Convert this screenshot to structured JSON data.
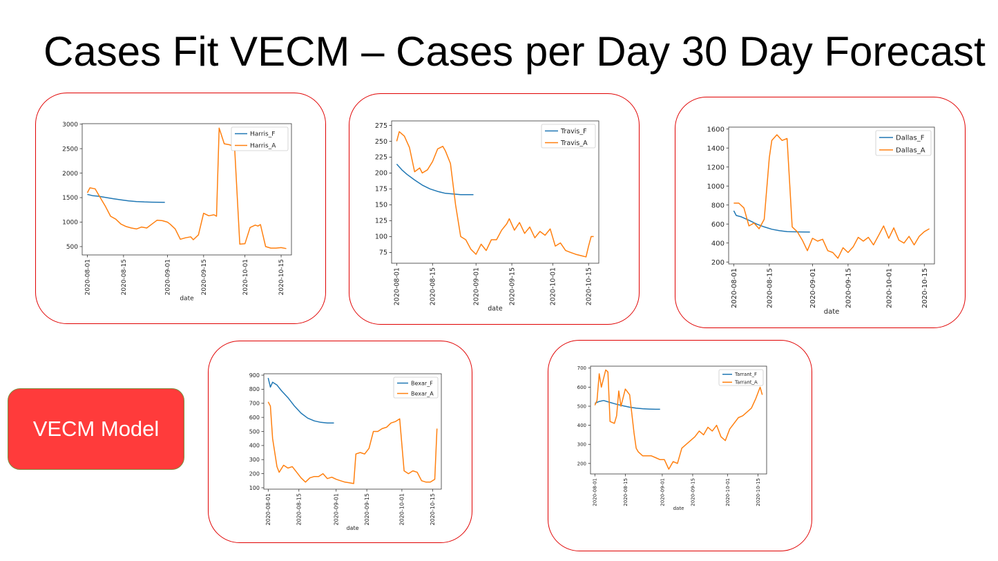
{
  "slide": {
    "title": "Cases Fit VECM – Cases per Day 30 Day Forecast",
    "model_button": "VECM Model"
  },
  "colors": {
    "forecast": "#1f77b4",
    "actual": "#ff7f0e",
    "panel_border": "#e00000",
    "button": "#ff3b3b"
  },
  "chart_data": [
    {
      "type": "line",
      "id": "harris",
      "xlabel": "date",
      "ylabel": "",
      "xlim": [
        "2020-07-30",
        "2020-10-19"
      ],
      "ylim": [
        330,
        3010
      ],
      "yticks": [
        500,
        1000,
        1500,
        2000,
        2500,
        3000
      ],
      "xticks": [
        "2020-08-01",
        "2020-08-15",
        "2020-09-01",
        "2020-09-15",
        "2020-10-01",
        "2020-10-15"
      ],
      "legend": "top-right",
      "series": [
        {
          "name": "Harris_F",
          "x": [
            "2020-08-01",
            "2020-08-03",
            "2020-08-05",
            "2020-08-08",
            "2020-08-11",
            "2020-08-14",
            "2020-08-17",
            "2020-08-20",
            "2020-08-23",
            "2020-08-26",
            "2020-08-29",
            "2020-08-31"
          ],
          "y": [
            1565,
            1540,
            1530,
            1505,
            1478,
            1455,
            1435,
            1420,
            1412,
            1408,
            1405,
            1404
          ]
        },
        {
          "name": "Harris_A",
          "x": [
            "2020-08-01",
            "2020-08-02",
            "2020-08-04",
            "2020-08-06",
            "2020-08-08",
            "2020-08-10",
            "2020-08-12",
            "2020-08-14",
            "2020-08-16",
            "2020-08-18",
            "2020-08-20",
            "2020-08-22",
            "2020-08-24",
            "2020-08-26",
            "2020-08-28",
            "2020-08-30",
            "2020-09-01",
            "2020-09-02",
            "2020-09-04",
            "2020-09-06",
            "2020-09-08",
            "2020-09-10",
            "2020-09-11",
            "2020-09-13",
            "2020-09-15",
            "2020-09-17",
            "2020-09-19",
            "2020-09-20",
            "2020-09-21",
            "2020-09-23",
            "2020-09-25",
            "2020-09-26",
            "2020-09-27",
            "2020-09-29",
            "2020-10-01",
            "2020-10-03",
            "2020-10-05",
            "2020-10-06",
            "2020-10-07",
            "2020-10-09",
            "2020-10-11",
            "2020-10-13",
            "2020-10-15",
            "2020-10-17"
          ],
          "y": [
            1600,
            1700,
            1680,
            1500,
            1320,
            1120,
            1060,
            960,
            910,
            880,
            860,
            900,
            880,
            960,
            1040,
            1030,
            1000,
            960,
            860,
            650,
            680,
            700,
            640,
            740,
            1180,
            1130,
            1150,
            1120,
            2920,
            2600,
            2580,
            2560,
            2520,
            550,
            560,
            890,
            940,
            920,
            950,
            500,
            470,
            470,
            480,
            460
          ]
        }
      ]
    },
    {
      "type": "line",
      "id": "travis",
      "xlabel": "date",
      "ylabel": "",
      "xlim": [
        "2020-07-30",
        "2020-10-19"
      ],
      "ylim": [
        58,
        282
      ],
      "yticks": [
        75,
        100,
        125,
        150,
        175,
        200,
        225,
        250,
        275
      ],
      "xticks": [
        "2020-08-01",
        "2020-08-15",
        "2020-09-01",
        "2020-09-15",
        "2020-10-01",
        "2020-10-15"
      ],
      "legend": "top-right",
      "series": [
        {
          "name": "Travis_F",
          "x": [
            "2020-08-01",
            "2020-08-03",
            "2020-08-05",
            "2020-08-08",
            "2020-08-11",
            "2020-08-14",
            "2020-08-17",
            "2020-08-20",
            "2020-08-23",
            "2020-08-26",
            "2020-08-29",
            "2020-08-31"
          ],
          "y": [
            214,
            205,
            198,
            189,
            181,
            175,
            171,
            168,
            167,
            166,
            166,
            166
          ]
        },
        {
          "name": "Travis_A",
          "x": [
            "2020-08-01",
            "2020-08-02",
            "2020-08-04",
            "2020-08-06",
            "2020-08-08",
            "2020-08-10",
            "2020-08-11",
            "2020-08-13",
            "2020-08-15",
            "2020-08-17",
            "2020-08-19",
            "2020-08-20",
            "2020-08-22",
            "2020-08-24",
            "2020-08-26",
            "2020-08-28",
            "2020-08-30",
            "2020-09-01",
            "2020-09-03",
            "2020-09-05",
            "2020-09-07",
            "2020-09-09",
            "2020-09-11",
            "2020-09-13",
            "2020-09-14",
            "2020-09-16",
            "2020-09-18",
            "2020-09-20",
            "2020-09-22",
            "2020-09-24",
            "2020-09-26",
            "2020-09-28",
            "2020-09-30",
            "2020-10-02",
            "2020-10-04",
            "2020-10-06",
            "2020-10-08",
            "2020-10-10",
            "2020-10-12",
            "2020-10-14",
            "2020-10-15",
            "2020-10-16",
            "2020-10-17"
          ],
          "y": [
            250,
            265,
            258,
            240,
            202,
            208,
            200,
            205,
            218,
            238,
            242,
            235,
            215,
            150,
            100,
            95,
            80,
            72,
            88,
            78,
            95,
            95,
            110,
            120,
            128,
            110,
            122,
            105,
            115,
            98,
            108,
            102,
            112,
            85,
            90,
            78,
            75,
            72,
            70,
            68,
            85,
            100,
            100
          ]
        }
      ]
    },
    {
      "type": "line",
      "id": "dallas",
      "xlabel": "date",
      "ylabel": "",
      "xlim": [
        "2020-07-30",
        "2020-10-19"
      ],
      "ylim": [
        180,
        1620
      ],
      "yticks": [
        200,
        400,
        600,
        800,
        1000,
        1200,
        1400,
        1600
      ],
      "xticks": [
        "2020-08-01",
        "2020-08-15",
        "2020-09-01",
        "2020-09-15",
        "2020-10-01",
        "2020-10-15"
      ],
      "legend": "top-right",
      "series": [
        {
          "name": "Dallas_F",
          "x": [
            "2020-08-01",
            "2020-08-02",
            "2020-08-04",
            "2020-08-07",
            "2020-08-10",
            "2020-08-13",
            "2020-08-16",
            "2020-08-19",
            "2020-08-22",
            "2020-08-25",
            "2020-08-28",
            "2020-08-31"
          ],
          "y": [
            740,
            690,
            675,
            640,
            600,
            570,
            545,
            530,
            520,
            518,
            516,
            515
          ]
        },
        {
          "name": "Dallas_A",
          "x": [
            "2020-08-01",
            "2020-08-03",
            "2020-08-05",
            "2020-08-07",
            "2020-08-09",
            "2020-08-11",
            "2020-08-13",
            "2020-08-15",
            "2020-08-16",
            "2020-08-18",
            "2020-08-20",
            "2020-08-22",
            "2020-08-24",
            "2020-08-26",
            "2020-08-28",
            "2020-08-30",
            "2020-09-01",
            "2020-09-03",
            "2020-09-05",
            "2020-09-07",
            "2020-09-09",
            "2020-09-11",
            "2020-09-13",
            "2020-09-15",
            "2020-09-17",
            "2020-09-19",
            "2020-09-21",
            "2020-09-23",
            "2020-09-25",
            "2020-09-27",
            "2020-09-29",
            "2020-10-01",
            "2020-10-03",
            "2020-10-05",
            "2020-10-07",
            "2020-10-09",
            "2020-10-11",
            "2020-10-13",
            "2020-10-15",
            "2020-10-17"
          ],
          "y": [
            820,
            820,
            770,
            580,
            610,
            550,
            650,
            1300,
            1480,
            1540,
            1480,
            1500,
            570,
            520,
            430,
            320,
            450,
            420,
            440,
            320,
            300,
            240,
            350,
            300,
            360,
            460,
            420,
            460,
            380,
            480,
            580,
            450,
            560,
            430,
            400,
            470,
            380,
            470,
            520,
            550
          ]
        }
      ]
    },
    {
      "type": "line",
      "id": "bexar",
      "xlabel": "date",
      "ylabel": "",
      "xlim": [
        "2020-07-30",
        "2020-10-19"
      ],
      "ylim": [
        90,
        910
      ],
      "yticks": [
        100,
        200,
        300,
        400,
        500,
        600,
        700,
        800,
        900
      ],
      "xticks": [
        "2020-08-01",
        "2020-08-15",
        "2020-09-01",
        "2020-09-15",
        "2020-10-01",
        "2020-10-15"
      ],
      "legend": "top-right",
      "series": [
        {
          "name": "Bexar_F",
          "x": [
            "2020-08-01",
            "2020-08-02",
            "2020-08-03",
            "2020-08-05",
            "2020-08-07",
            "2020-08-10",
            "2020-08-13",
            "2020-08-16",
            "2020-08-19",
            "2020-08-22",
            "2020-08-25",
            "2020-08-28",
            "2020-08-31"
          ],
          "y": [
            880,
            815,
            850,
            830,
            790,
            740,
            680,
            630,
            595,
            575,
            565,
            560,
            560
          ]
        },
        {
          "name": "Bexar_A",
          "x": [
            "2020-08-01",
            "2020-08-02",
            "2020-08-03",
            "2020-08-05",
            "2020-08-06",
            "2020-08-08",
            "2020-08-10",
            "2020-08-12",
            "2020-08-14",
            "2020-08-16",
            "2020-08-18",
            "2020-08-20",
            "2020-08-22",
            "2020-08-24",
            "2020-08-26",
            "2020-08-28",
            "2020-08-30",
            "2020-09-01",
            "2020-09-03",
            "2020-09-05",
            "2020-09-07",
            "2020-09-09",
            "2020-09-10",
            "2020-09-12",
            "2020-09-14",
            "2020-09-16",
            "2020-09-18",
            "2020-09-20",
            "2020-09-22",
            "2020-09-24",
            "2020-09-26",
            "2020-09-28",
            "2020-09-30",
            "2020-10-02",
            "2020-10-04",
            "2020-10-06",
            "2020-10-08",
            "2020-10-10",
            "2020-10-12",
            "2020-10-14",
            "2020-10-16",
            "2020-10-17"
          ],
          "y": [
            710,
            680,
            450,
            250,
            210,
            260,
            240,
            250,
            210,
            170,
            140,
            170,
            180,
            180,
            200,
            165,
            175,
            160,
            150,
            140,
            135,
            130,
            340,
            350,
            340,
            380,
            500,
            500,
            520,
            530,
            560,
            570,
            590,
            220,
            200,
            220,
            210,
            150,
            140,
            140,
            160,
            520
          ]
        }
      ]
    },
    {
      "type": "line",
      "id": "tarrant",
      "xlabel": "date",
      "ylabel": "",
      "xlim": [
        "2020-07-30",
        "2020-10-19"
      ],
      "ylim": [
        145,
        710
      ],
      "yticks": [
        200,
        300,
        400,
        500,
        600,
        700
      ],
      "xticks": [
        "2020-08-01",
        "2020-08-15",
        "2020-09-01",
        "2020-09-15",
        "2020-10-01",
        "2020-10-15"
      ],
      "legend": "top-right",
      "series": [
        {
          "name": "Tarrant_F",
          "x": [
            "2020-08-01",
            "2020-08-03",
            "2020-08-05",
            "2020-08-08",
            "2020-08-11",
            "2020-08-14",
            "2020-08-17",
            "2020-08-20",
            "2020-08-23",
            "2020-08-26",
            "2020-08-29",
            "2020-08-31"
          ],
          "y": [
            515,
            525,
            530,
            520,
            510,
            502,
            495,
            490,
            487,
            485,
            484,
            484
          ]
        },
        {
          "name": "Tarrant_A",
          "x": [
            "2020-08-01",
            "2020-08-02",
            "2020-08-03",
            "2020-08-04",
            "2020-08-06",
            "2020-08-07",
            "2020-08-08",
            "2020-08-10",
            "2020-08-11",
            "2020-08-12",
            "2020-08-13",
            "2020-08-15",
            "2020-08-17",
            "2020-08-19",
            "2020-08-20",
            "2020-08-21",
            "2020-08-23",
            "2020-08-25",
            "2020-08-27",
            "2020-08-29",
            "2020-08-31",
            "2020-09-02",
            "2020-09-04",
            "2020-09-06",
            "2020-09-08",
            "2020-09-10",
            "2020-09-12",
            "2020-09-14",
            "2020-09-16",
            "2020-09-18",
            "2020-09-20",
            "2020-09-22",
            "2020-09-24",
            "2020-09-26",
            "2020-09-28",
            "2020-09-30",
            "2020-10-02",
            "2020-10-04",
            "2020-10-06",
            "2020-10-08",
            "2020-10-10",
            "2020-10-12",
            "2020-10-14",
            "2020-10-16",
            "2020-10-17"
          ],
          "y": [
            505,
            530,
            670,
            600,
            690,
            680,
            420,
            410,
            450,
            580,
            500,
            590,
            560,
            360,
            280,
            260,
            240,
            240,
            240,
            230,
            220,
            220,
            170,
            210,
            200,
            280,
            300,
            320,
            340,
            370,
            350,
            390,
            370,
            400,
            340,
            320,
            380,
            410,
            440,
            450,
            470,
            490,
            540,
            600,
            560
          ]
        }
      ]
    }
  ]
}
